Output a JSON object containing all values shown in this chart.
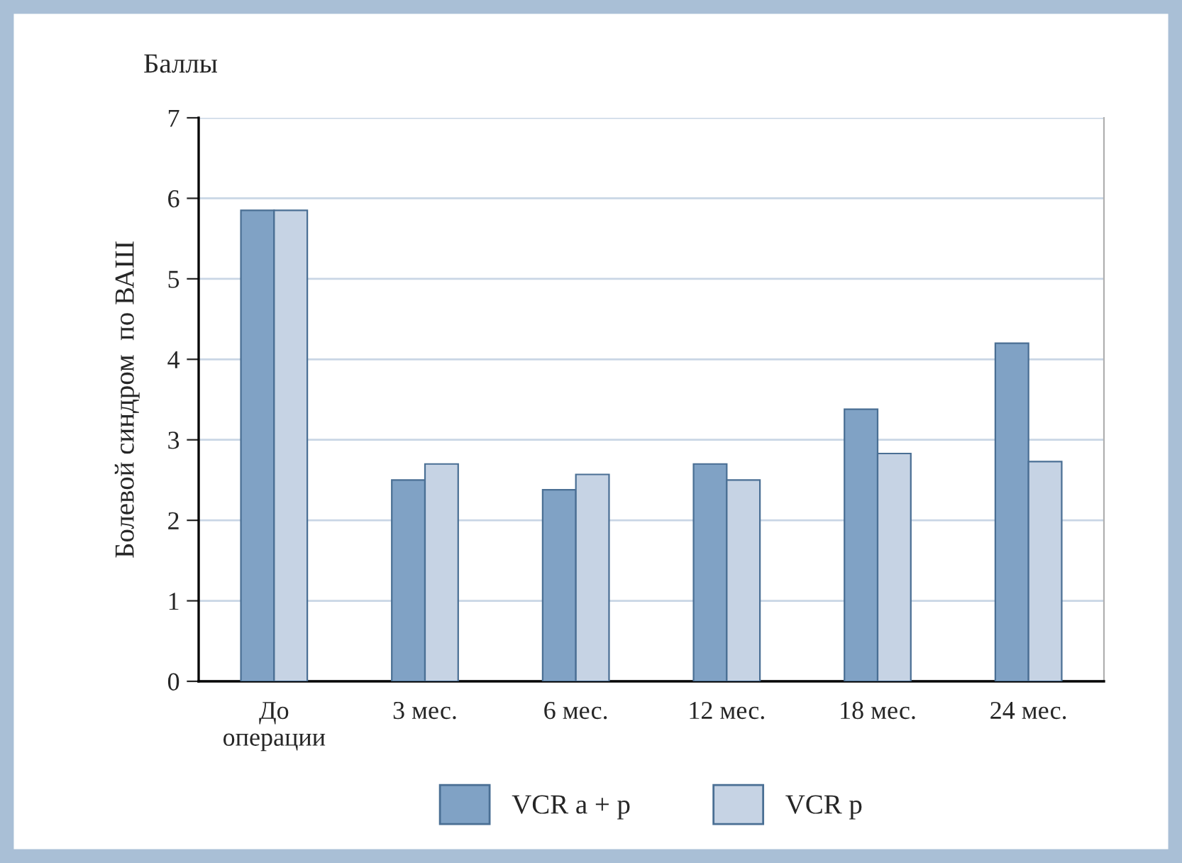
{
  "chart_data": {
    "type": "bar",
    "ylabel": "Болевой синдром  по ВАШ",
    "annotations": [
      "Баллы"
    ],
    "categories": [
      "До\nоперации",
      "3 мес.",
      "6 мес.",
      "12 мес.",
      "18 мес.",
      "24 мес."
    ],
    "series": [
      {
        "name": "VCR a + p",
        "color": "#80a2c5",
        "values": [
          5.85,
          2.5,
          2.38,
          2.7,
          3.38,
          4.2
        ]
      },
      {
        "name": "VCR p",
        "color": "#c6d3e4",
        "values": [
          5.85,
          2.7,
          2.57,
          2.5,
          2.83,
          2.73
        ]
      }
    ],
    "ylim": [
      0,
      7
    ],
    "yticks": [
      0,
      1,
      2,
      3,
      4,
      5,
      6,
      7
    ],
    "grid": "y",
    "legend": "bottom"
  }
}
